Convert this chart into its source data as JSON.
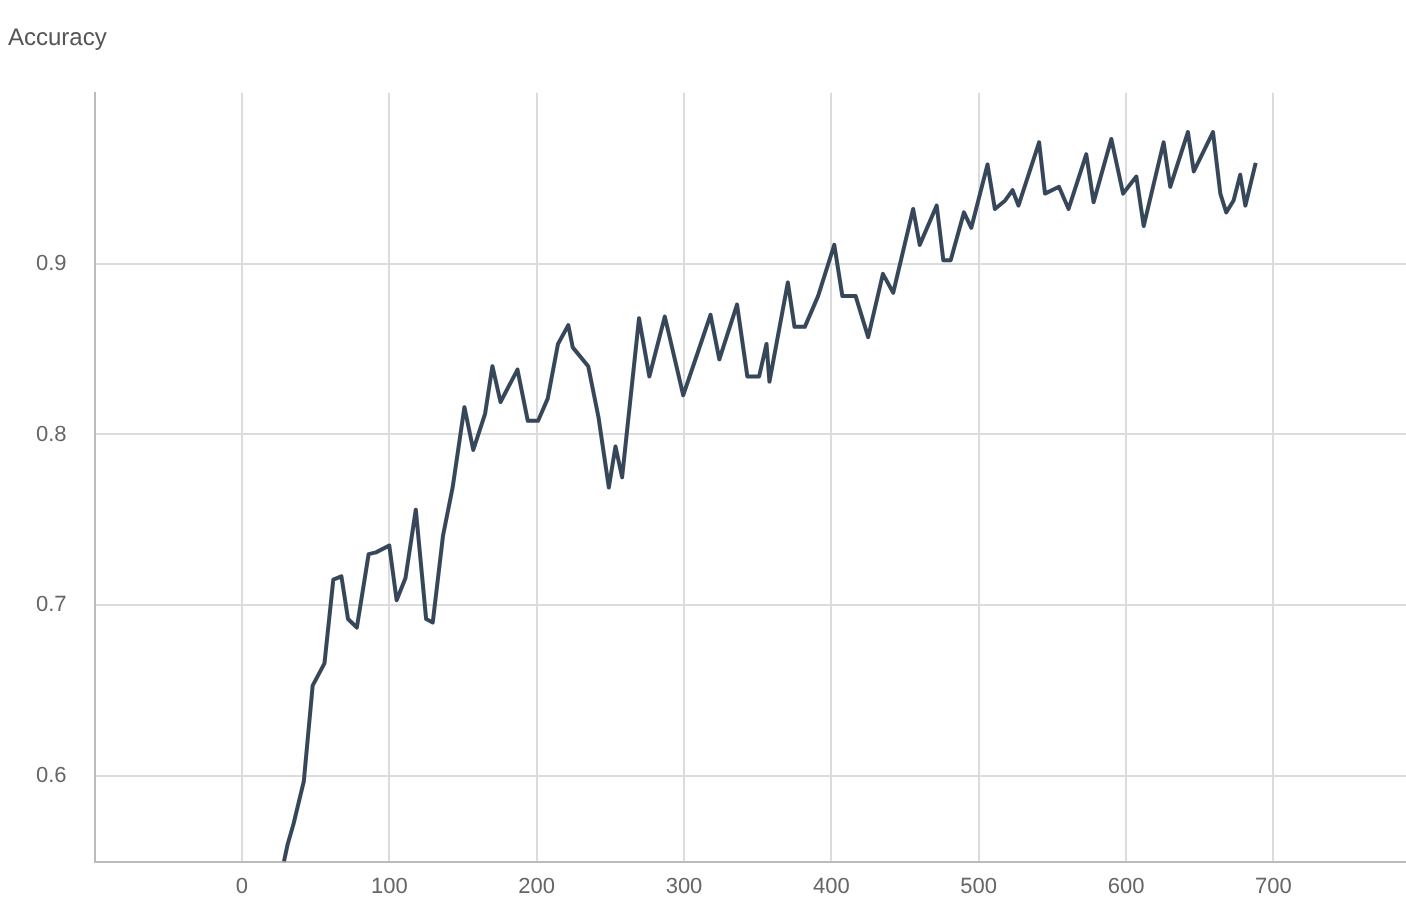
{
  "chart_data": {
    "type": "line",
    "title": "Accuracy",
    "xlim": [
      -100,
      790
    ],
    "xticks": [
      0,
      100,
      200,
      300,
      400,
      500,
      600,
      700
    ],
    "ylim": [
      0.55,
      1.0
    ],
    "yticks": [
      0.6,
      0.7,
      0.8,
      0.9
    ],
    "grid": true,
    "legend": false,
    "marker": "none",
    "line_style": "solid",
    "series": [
      {
        "color": "#37475a",
        "x": [
          28.5,
          31,
          35,
          42,
          48,
          56,
          62,
          67.5,
          72,
          78,
          86,
          91,
          100,
          105,
          111,
          118,
          125,
          129.5,
          136.5,
          143,
          151,
          157,
          165,
          170,
          175.5,
          187,
          194,
          201,
          207.5,
          214.5,
          221.5,
          224.5,
          235,
          242,
          249,
          253.5,
          258,
          269.5,
          276.5,
          287,
          299.5,
          307,
          318,
          324,
          336,
          343,
          351,
          356,
          358,
          370.5,
          375,
          382,
          391,
          402,
          407.5,
          416.5,
          425,
          435,
          442,
          455.5,
          460,
          471.5,
          476,
          481,
          490,
          495,
          506,
          511,
          518,
          523,
          527,
          541,
          545,
          554.5,
          561,
          573,
          578,
          590,
          598,
          607,
          612,
          625.5,
          630,
          642,
          646,
          659,
          664,
          668,
          673,
          677.5,
          681,
          688
        ],
        "values": [
          0.55,
          0.56,
          0.572,
          0.597,
          0.653,
          0.666,
          0.715,
          0.717,
          0.692,
          0.687,
          0.73,
          0.731,
          0.735,
          0.703,
          0.716,
          0.756,
          0.692,
          0.69,
          0.741,
          0.769,
          0.816,
          0.791,
          0.812,
          0.84,
          0.819,
          0.838,
          0.808,
          0.808,
          0.821,
          0.853,
          0.864,
          0.851,
          0.84,
          0.81,
          0.769,
          0.793,
          0.775,
          0.868,
          0.834,
          0.869,
          0.823,
          0.842,
          0.87,
          0.844,
          0.876,
          0.834,
          0.834,
          0.853,
          0.831,
          0.889,
          0.863,
          0.863,
          0.881,
          0.911,
          0.881,
          0.881,
          0.857,
          0.894,
          0.883,
          0.932,
          0.911,
          0.934,
          0.902,
          0.902,
          0.93,
          0.921,
          0.958,
          0.932,
          0.937,
          0.943,
          0.934,
          0.971,
          0.941,
          0.945,
          0.932,
          0.964,
          0.936,
          0.973,
          0.941,
          0.951,
          0.922,
          0.971,
          0.945,
          0.977,
          0.954,
          0.977,
          0.941,
          0.93,
          0.937,
          0.952,
          0.934,
          0.959
        ]
      }
    ]
  }
}
